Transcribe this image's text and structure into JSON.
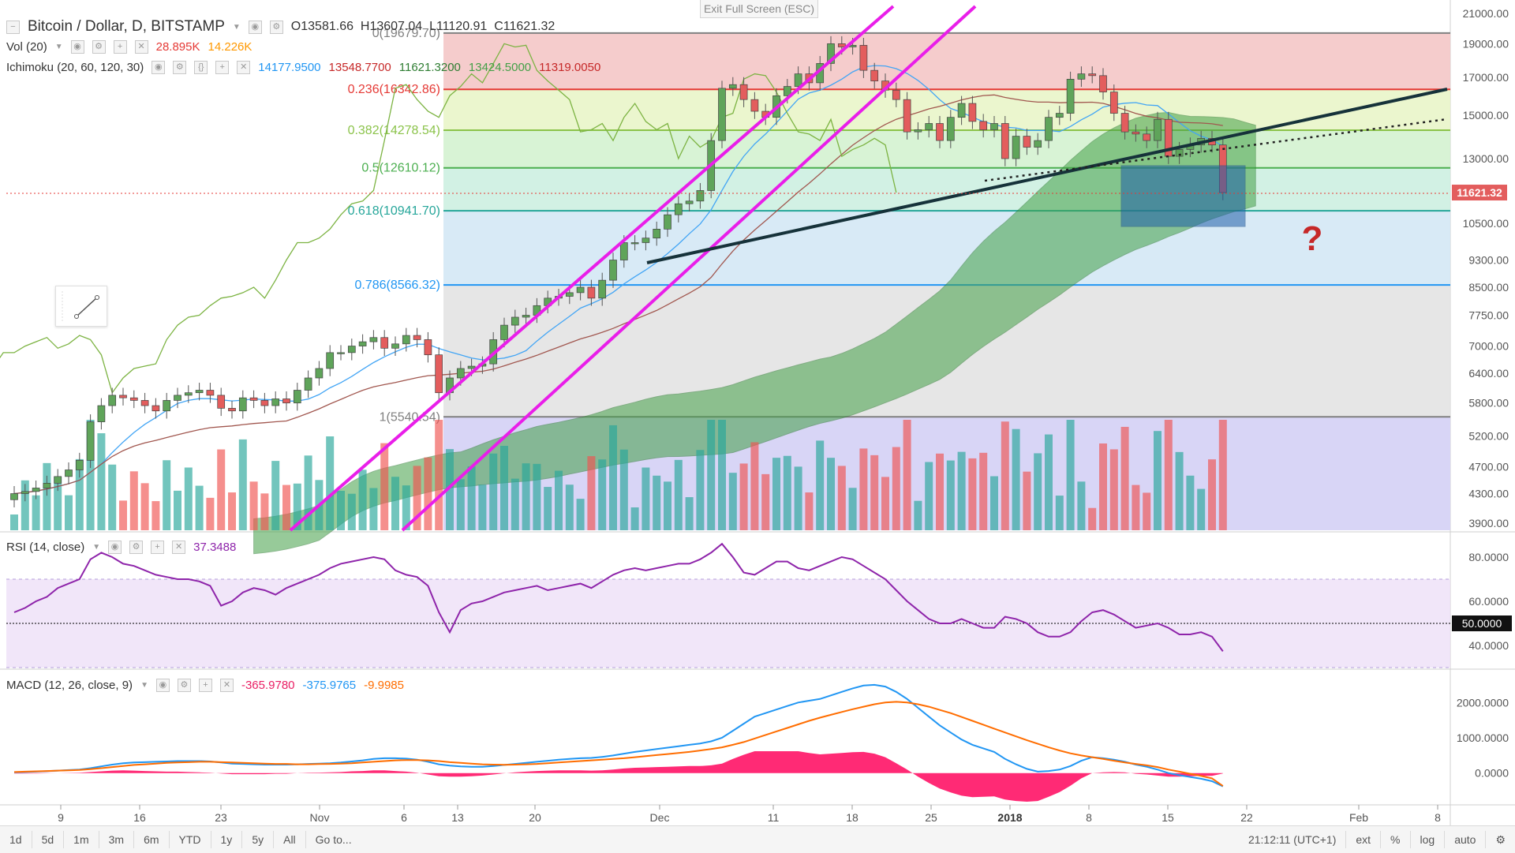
{
  "header": {
    "symbol_title": "Bitcoin / Dollar, D, BITSTAMP",
    "ohlc": {
      "o_label": "O",
      "o": "13581.66",
      "h_label": "H",
      "h": "13607.04",
      "l_label": "L",
      "l": "11120.91",
      "c_label": "C",
      "c": "11621.32"
    },
    "vol_label": "Vol (20)",
    "vol_v1": "28.895K",
    "vol_v2": "14.226K",
    "ichimoku_label": "Ichimoku (20, 60, 120, 30)",
    "ichimoku_values": [
      "14177.9500",
      "13548.7700",
      "11621.3200",
      "13424.5000",
      "11319.0050"
    ],
    "ichimoku_colors": [
      "#2196f3",
      "#c62828",
      "#2e7d32",
      "#43a047",
      "#c62828"
    ],
    "exit_full_screen": "Exit Full Screen (ESC)"
  },
  "rsi": {
    "label": "RSI (14, close)",
    "value": "37.3488",
    "marker": "50.0000"
  },
  "macd": {
    "label": "MACD (12, 26, close, 9)",
    "v1": "-365.9780",
    "v2": "-375.9765",
    "v3": "-9.9985"
  },
  "annotation": {
    "question": "?"
  },
  "price_axis": {
    "last_price": "11621.32"
  },
  "fib_levels": [
    {
      "label": "0(19679.70)",
      "price": 19679.7,
      "color": "#808080"
    },
    {
      "label": "0.236(16342.86)",
      "price": 16342.86,
      "color": "#e53935"
    },
    {
      "label": "0.382(14278.54)",
      "price": 14278.54,
      "color": "#8bc34a"
    },
    {
      "label": "0.5(12610.12)",
      "price": 12610.12,
      "color": "#4caf50"
    },
    {
      "label": "0.618(10941.70)",
      "price": 10941.7,
      "color": "#26a69a"
    },
    {
      "label": "0.786(8566.32)",
      "price": 8566.32,
      "color": "#2196f3"
    },
    {
      "label": "1(5540.54)",
      "price": 5540.54,
      "color": "#808080"
    }
  ],
  "chart_data": [
    {
      "type": "candlestick",
      "title": "Bitcoin / Dollar, D, BITSTAMP",
      "y_scale": "log",
      "y_ticks": [
        "21000.00",
        "19000.00",
        "17000.00",
        "15000.00",
        "13000.00",
        "10500.00",
        "9300.00",
        "8500.00",
        "7750.00",
        "7000.00",
        "6400.00",
        "5800.00",
        "5200.00",
        "4700.00",
        "4300.00",
        "3900.00"
      ],
      "x_ticks": [
        "9",
        "16",
        "23",
        "Nov",
        "6",
        "13",
        "20",
        "Dec",
        "11",
        "18",
        "25",
        "2018",
        "8",
        "15",
        "22",
        "Feb",
        "8"
      ],
      "close": [
        4300,
        4330,
        4380,
        4450,
        4550,
        4650,
        4800,
        5450,
        5750,
        5950,
        5900,
        5850,
        5750,
        5650,
        5850,
        5950,
        6000,
        6050,
        5950,
        5700,
        5650,
        5900,
        5850,
        5750,
        5880,
        5800,
        6050,
        6300,
        6500,
        6850,
        6850,
        7000,
        7100,
        7200,
        6950,
        7050,
        7250,
        7150,
        6800,
        6000,
        6300,
        6500,
        6550,
        6600,
        7150,
        7500,
        7700,
        7750,
        8000,
        8200,
        8250,
        8350,
        8500,
        8200,
        8700,
        9300,
        9850,
        9850,
        10000,
        10300,
        10800,
        11200,
        11300,
        11700,
        13800,
        16400,
        16600,
        15800,
        15200,
        14900,
        16000,
        16500,
        17200,
        16700,
        17800,
        19000,
        18800,
        18900,
        17400,
        16800,
        16300,
        15800,
        14200,
        14300,
        14600,
        13800,
        14900,
        15600,
        14700,
        14300,
        14600,
        13000,
        14000,
        13500,
        13800,
        14900,
        15100,
        16900,
        17200,
        17100,
        16200,
        15100,
        14200,
        14100,
        13800,
        14800,
        13100,
        13400,
        13600,
        13900,
        13600,
        11621
      ]
    },
    {
      "type": "line",
      "title": "RSI (14, close)",
      "ylim": [
        30,
        90
      ],
      "y_ticks": [
        "80.0000",
        "60.0000",
        "40.0000"
      ],
      "values": [
        55,
        57,
        60,
        62,
        66,
        68,
        70,
        79,
        82,
        80,
        77,
        76,
        74,
        72,
        71,
        70,
        70,
        69,
        67,
        58,
        60,
        64,
        66,
        65,
        63,
        66,
        68,
        70,
        72,
        75,
        77,
        78,
        79,
        80,
        79,
        74,
        72,
        71,
        67,
        55,
        46,
        56,
        59,
        60,
        62,
        64,
        65,
        66,
        67,
        65,
        66,
        67,
        68,
        66,
        69,
        72,
        74,
        75,
        74,
        75,
        76,
        77,
        77,
        79,
        82,
        86,
        80,
        73,
        72,
        75,
        78,
        78,
        75,
        74,
        76,
        78,
        80,
        79,
        76,
        73,
        70,
        65,
        60,
        56,
        52,
        50,
        50,
        52,
        50,
        48,
        48,
        53,
        52,
        50,
        46,
        44,
        44,
        46,
        51,
        55,
        56,
        54,
        51,
        48,
        49,
        50,
        48,
        45,
        45,
        46,
        44,
        37.35
      ]
    },
    {
      "type": "line",
      "title": "MACD (12, 26, close, 9)",
      "ylim": [
        -900,
        2900
      ],
      "y_ticks": [
        "2000.0000",
        "1000.0000",
        "0.0000"
      ],
      "series": [
        {
          "name": "MACD",
          "values": [
            20,
            30,
            40,
            55,
            70,
            85,
            100,
            140,
            190,
            240,
            280,
            300,
            310,
            320,
            330,
            340,
            340,
            340,
            330,
            300,
            270,
            260,
            250,
            240,
            240,
            240,
            250,
            260,
            270,
            280,
            300,
            330,
            360,
            400,
            420,
            420,
            410,
            380,
            320,
            250,
            210,
            190,
            180,
            180,
            200,
            230,
            260,
            290,
            320,
            350,
            380,
            400,
            420,
            430,
            460,
            500,
            550,
            600,
            640,
            680,
            720,
            760,
            800,
            840,
            900,
            1000,
            1200,
            1400,
            1600,
            1700,
            1800,
            1900,
            2000,
            2050,
            2100,
            2200,
            2300,
            2400,
            2480,
            2500,
            2450,
            2300,
            2100,
            1850,
            1600,
            1350,
            1150,
            950,
            800,
            700,
            600,
            400,
            250,
            120,
            40,
            60,
            100,
            200,
            350,
            450,
            420,
            380,
            320,
            240,
            180,
            100,
            0,
            -60,
            -110,
            -160,
            -230,
            -376
          ]
        },
        {
          "name": "Signal",
          "values": [
            30,
            40,
            50,
            60,
            70,
            80,
            90,
            110,
            140,
            170,
            200,
            230,
            250,
            270,
            290,
            300,
            310,
            320,
            320,
            310,
            300,
            290,
            280,
            270,
            260,
            260,
            250,
            250,
            255,
            260,
            270,
            280,
            300,
            320,
            340,
            360,
            370,
            370,
            360,
            340,
            310,
            290,
            270,
            250,
            240,
            235,
            240,
            250,
            260,
            280,
            300,
            320,
            340,
            360,
            380,
            400,
            420,
            450,
            480,
            510,
            540,
            570,
            600,
            640,
            680,
            730,
            800,
            880,
            980,
            1080,
            1180,
            1280,
            1380,
            1480,
            1570,
            1650,
            1730,
            1810,
            1880,
            1950,
            2000,
            2020,
            2000,
            1950,
            1880,
            1790,
            1700,
            1590,
            1480,
            1370,
            1260,
            1150,
            1040,
            930,
            830,
            730,
            640,
            560,
            500,
            450,
            400,
            350,
            300,
            260,
            220,
            170,
            100,
            40,
            -20,
            -80,
            -150,
            -366
          ]
        },
        {
          "name": "Histogram",
          "values": [
            -10,
            -10,
            -10,
            -5,
            0,
            5,
            10,
            30,
            50,
            70,
            80,
            70,
            60,
            50,
            40,
            40,
            30,
            20,
            10,
            -10,
            -30,
            -30,
            -30,
            -30,
            -20,
            -20,
            0,
            10,
            15,
            20,
            30,
            50,
            60,
            80,
            80,
            60,
            40,
            10,
            -40,
            -90,
            -100,
            -100,
            -90,
            -70,
            -40,
            -5,
            20,
            40,
            60,
            70,
            80,
            80,
            80,
            70,
            80,
            100,
            130,
            150,
            160,
            170,
            180,
            190,
            200,
            200,
            220,
            270,
            400,
            520,
            620,
            620,
            620,
            620,
            620,
            570,
            530,
            550,
            570,
            590,
            600,
            550,
            450,
            280,
            100,
            -100,
            -280,
            -440,
            -550,
            -640,
            -680,
            -670,
            -660,
            -750,
            -790,
            -810,
            -790,
            -670,
            -540,
            -360,
            -150,
            0,
            20,
            30,
            20,
            -20,
            -40,
            -70,
            -100,
            -100,
            -90,
            -80,
            -80,
            -10
          ]
        }
      ]
    }
  ],
  "bottom_bar": {
    "ranges": [
      "1d",
      "5d",
      "1m",
      "3m",
      "6m",
      "YTD",
      "1y",
      "5y",
      "All"
    ],
    "goto": "Go to...",
    "time": "21:12:11 (UTC+1)",
    "ext": "ext",
    "percent": "%",
    "log": "log",
    "auto": "auto",
    "settings_icon": "gear-icon"
  }
}
